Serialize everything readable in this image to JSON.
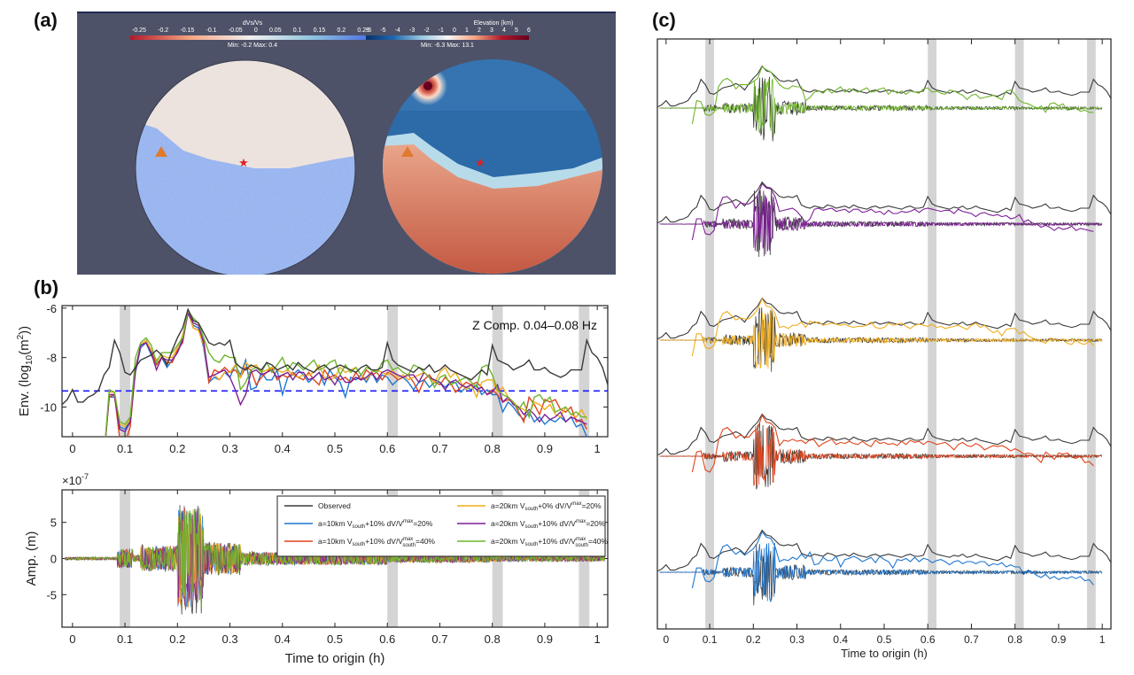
{
  "labels": {
    "a": "(a)",
    "b": "(b)",
    "c": "(c)"
  },
  "panel_a": {
    "left_map": {
      "colorbar_title": "dVs/Vs",
      "colorbar_ticks": [
        "-0.25",
        "-0.2",
        "-0.15",
        "-0.1",
        "-0.05",
        "0",
        "0.05",
        "0.1",
        "0.15",
        "0.2",
        "0.25"
      ],
      "minmax": "Min: -0.2   Max: 0.4",
      "colors": [
        "#b2182b",
        "#f4a582",
        "#f0f0f0",
        "#92c5de",
        "#4a6fe3"
      ]
    },
    "right_map": {
      "colorbar_title": "Elevation (km)",
      "colorbar_ticks": [
        "-6",
        "-5",
        "-4",
        "-3",
        "-2",
        "-1",
        "0",
        "1",
        "2",
        "3",
        "4",
        "5",
        "6"
      ],
      "minmax": "Min: -6.3  Max: 13.1",
      "colors": [
        "#08306b",
        "#2166ac",
        "#92c5de",
        "#f7f7f7",
        "#f4a582",
        "#b2182b",
        "#67001f"
      ]
    },
    "markers": {
      "station": "triangle",
      "event": "star"
    }
  },
  "chart_data": [
    {
      "type": "line",
      "panel": "b-top",
      "title": "",
      "annotation": "Z Comp.  0.04–0.08 Hz",
      "xlabel": "",
      "ylabel": "Env. (log10(m2))",
      "ylabel_parts": [
        "Env. (log",
        "10",
        "(m",
        "2",
        "))"
      ],
      "xlim": [
        -0.02,
        1.02
      ],
      "ylim": [
        -11.2,
        -5.9
      ],
      "xticks": [
        0,
        0.1,
        0.2,
        0.3,
        0.4,
        0.5,
        0.6,
        0.7,
        0.8,
        0.9,
        1
      ],
      "xtick_labels": [
        "0",
        "0.1",
        "0.2",
        "0.3",
        "0.4",
        "0.5",
        "0.6",
        "0.7",
        "0.8",
        "0.9",
        "1"
      ],
      "yticks": [
        -10,
        -8,
        -6
      ],
      "ytick_labels": [
        "-10",
        "-8",
        "-6"
      ],
      "threshold": -9.35,
      "shaded_windows": [
        [
          0.09,
          0.11
        ],
        [
          0.6,
          0.62
        ],
        [
          0.8,
          0.82
        ],
        [
          0.965,
          0.985
        ]
      ],
      "x": [
        -0.02,
        -0.01,
        0,
        0.01,
        0.02,
        0.03,
        0.04,
        0.05,
        0.06,
        0.07,
        0.08,
        0.09,
        0.1,
        0.11,
        0.12,
        0.13,
        0.14,
        0.15,
        0.16,
        0.17,
        0.18,
        0.19,
        0.2,
        0.21,
        0.22,
        0.23,
        0.24,
        0.25,
        0.26,
        0.27,
        0.28,
        0.29,
        0.3,
        0.31,
        0.32,
        0.33,
        0.34,
        0.35,
        0.36,
        0.37,
        0.38,
        0.39,
        0.4,
        0.41,
        0.42,
        0.43,
        0.44,
        0.45,
        0.46,
        0.47,
        0.48,
        0.49,
        0.5,
        0.51,
        0.52,
        0.53,
        0.54,
        0.55,
        0.56,
        0.57,
        0.58,
        0.59,
        0.6,
        0.61,
        0.62,
        0.63,
        0.64,
        0.65,
        0.66,
        0.67,
        0.68,
        0.69,
        0.7,
        0.71,
        0.72,
        0.73,
        0.74,
        0.75,
        0.76,
        0.77,
        0.78,
        0.79,
        0.8,
        0.81,
        0.82,
        0.83,
        0.84,
        0.85,
        0.86,
        0.87,
        0.88,
        0.89,
        0.9,
        0.91,
        0.92,
        0.93,
        0.94,
        0.95,
        0.96,
        0.97,
        0.98,
        0.99,
        1,
        1.01,
        1.02
      ],
      "series": [
        {
          "name": "Observed",
          "color": "#3a3a3a",
          "values": [
            -9.9,
            -9.7,
            -9.3,
            -9.8,
            -9.8,
            -9.6,
            -9.5,
            -9.3,
            -8.7,
            -8.4,
            -7.3,
            -7.8,
            -8.6,
            -8.7,
            -8.4,
            -8.1,
            -8.0,
            -7.9,
            -7.7,
            -7.9,
            -8.3,
            -7.7,
            -7.2,
            -6.8,
            -6.05,
            -6.5,
            -6.6,
            -7.0,
            -7.4,
            -7.5,
            -7.4,
            -7.5,
            -7.3,
            -8.2,
            -8.4,
            -8.5,
            -8.3,
            -8.4,
            -8.5,
            -8.2,
            -8.3,
            -8.5,
            -8.4,
            -8.3,
            -8.5,
            -8.2,
            -8.4,
            -8.5,
            -8.6,
            -8.4,
            -8.3,
            -8.5,
            -8.4,
            -8.3,
            -8.4,
            -8.5,
            -8.6,
            -8.4,
            -8.3,
            -8.5,
            -8.5,
            -8.4,
            -7.4,
            -8.1,
            -8.3,
            -8.4,
            -8.5,
            -8.6,
            -8.4,
            -8.5,
            -8.3,
            -8.6,
            -8.5,
            -8.3,
            -8.5,
            -8.6,
            -8.7,
            -8.8,
            -8.9,
            -8.7,
            -8.5,
            -8.7,
            -7.5,
            -8.1,
            -8.2,
            -8.3,
            -8.5,
            -8.4,
            -8.3,
            -8.1,
            -8.5,
            -8.5,
            -8.4,
            -8.6,
            -8.7,
            -8.8,
            -8.7,
            -8.5,
            -8.5,
            -8.5,
            -7.3,
            -7.8,
            -8.0,
            -8.4,
            -9.1
          ]
        },
        {
          "name": "a=10km Vsouth+10% dV/Vmax=20%",
          "color": "#1f77d0",
          "values": [
            null,
            null,
            null,
            null,
            null,
            null,
            null,
            null,
            -12,
            -9.6,
            -9.6,
            -10.8,
            -10.9,
            -10.5,
            -8.6,
            -7.6,
            -7.4,
            -7.9,
            -8.3,
            -8.0,
            -8.4,
            -8.1,
            -7.8,
            -7.2,
            -6.2,
            -6.7,
            -6.8,
            -7.6,
            -9.0,
            -8.8,
            -8.9,
            -8.6,
            -8.8,
            -8.3,
            -8.7,
            -8.1,
            -9.3,
            -9.2,
            -8.6,
            -8.9,
            -8.9,
            -8.5,
            -9.5,
            -8.8,
            -8.7,
            -8.5,
            -8.7,
            -9.0,
            -8.8,
            -8.6,
            -9.1,
            -8.5,
            -8.8,
            -9.0,
            -9.6,
            -8.8,
            -8.9,
            -8.7,
            -9.0,
            -8.6,
            -9.0,
            -8.7,
            -8.8,
            -9.1,
            -8.9,
            -8.8,
            -9.0,
            -9.3,
            -9.0,
            -8.9,
            -9.2,
            -9.0,
            -9.0,
            -9.2,
            -9.0,
            -9.0,
            -9.4,
            -9.2,
            -9.3,
            -9.1,
            -9.5,
            -9.3,
            -9.5,
            -9.5,
            -10.2,
            -9.8,
            -10.0,
            -10.3,
            -10.5,
            -10.2,
            -10.6,
            -10.4,
            -10.7,
            -10.5,
            -10.6,
            -10.4,
            -10.6,
            -10.4,
            -10.8,
            -10.7,
            -11.2,
            null,
            null,
            null,
            null
          ]
        },
        {
          "name": "a=10km Vsouth+10% dV/Vsouthmax=40%",
          "color": "#e0441c",
          "values": [
            null,
            null,
            null,
            null,
            null,
            null,
            null,
            null,
            -12,
            -9.6,
            -9.5,
            -11.3,
            -11.5,
            -10.8,
            -8.5,
            -7.5,
            -7.3,
            -7.7,
            -8.3,
            -8.0,
            -8.2,
            -8.2,
            -7.7,
            -7.4,
            -6.15,
            -6.8,
            -6.9,
            -7.3,
            -9.0,
            -8.5,
            -8.6,
            -8.4,
            -8.6,
            -8.5,
            -8.8,
            -8.4,
            -8.5,
            -9.1,
            -8.8,
            -8.6,
            -8.4,
            -8.9,
            -8.7,
            -8.8,
            -8.6,
            -8.8,
            -8.9,
            -8.6,
            -8.9,
            -9.1,
            -8.5,
            -8.8,
            -8.7,
            -8.9,
            -8.8,
            -9.0,
            -8.6,
            -8.9,
            -8.5,
            -8.7,
            -8.6,
            -8.9,
            -8.6,
            -8.7,
            -8.9,
            -8.8,
            -8.7,
            -9.0,
            -9.4,
            -8.9,
            -8.7,
            -9.0,
            -9.1,
            -8.8,
            -9.0,
            -9.4,
            -9.2,
            -9.0,
            -9.1,
            -9.0,
            -9.2,
            -9.5,
            -9.3,
            -9.5,
            -9.8,
            -9.7,
            -9.8,
            -10.2,
            -10.6,
            -9.6,
            -9.9,
            -10.3,
            -9.7,
            -9.8,
            -9.7,
            -10.1,
            -10.2,
            -10.0,
            -10.6,
            -10.5,
            -10.9,
            null,
            null,
            null,
            null
          ]
        },
        {
          "name": "a=20km Vsouth+0%  dV/Vmax=20%",
          "color": "#f0ad1c",
          "values": [
            null,
            null,
            null,
            null,
            null,
            null,
            null,
            null,
            -12,
            -9.4,
            -9.4,
            -10.7,
            -10.8,
            -10.5,
            -8.4,
            -7.5,
            -7.3,
            -7.7,
            -8.1,
            -7.9,
            -8.0,
            -8.0,
            -7.6,
            -7.1,
            -6.1,
            -6.8,
            -6.9,
            -7.5,
            -8.8,
            -8.7,
            -8.9,
            -8.6,
            -8.6,
            -8.3,
            -8.8,
            -8.2,
            -8.4,
            -8.3,
            -8.6,
            -8.5,
            -8.4,
            -8.5,
            -8.6,
            -8.5,
            -8.7,
            -8.8,
            -8.7,
            -8.7,
            -8.6,
            -8.3,
            -8.8,
            -8.9,
            -8.8,
            -8.4,
            -8.6,
            -8.5,
            -8.4,
            -8.7,
            -8.9,
            -8.6,
            -8.5,
            -8.6,
            -8.7,
            -8.5,
            -8.8,
            -8.7,
            -8.9,
            -8.8,
            -8.7,
            -8.6,
            -8.8,
            -9.0,
            -8.6,
            -8.4,
            -8.8,
            -8.6,
            -9.0,
            -9.3,
            -9.1,
            -9.6,
            -9.0,
            -8.9,
            -8.9,
            -9.4,
            -9.2,
            -9.6,
            -9.8,
            -10.0,
            -10.1,
            -10.3,
            -9.8,
            -9.9,
            -10.1,
            -9.9,
            -10.3,
            -10.4,
            -10.0,
            -10.3,
            -10.4,
            -10.1,
            -10.5,
            null,
            null,
            null,
            null
          ]
        },
        {
          "name": "a=20km Vsouth+10% dV/Vmax=20%",
          "color": "#7d1f96",
          "values": [
            null,
            null,
            null,
            null,
            null,
            null,
            null,
            null,
            -12,
            -9.5,
            -9.5,
            -10.9,
            -11.0,
            -10.6,
            -8.5,
            -7.5,
            -7.4,
            -7.8,
            -8.5,
            -8.0,
            -8.1,
            -8.1,
            -7.8,
            -7.3,
            -6.2,
            -6.6,
            -6.7,
            -7.4,
            -8.8,
            -8.7,
            -8.6,
            -8.5,
            -8.8,
            -9.3,
            -9.9,
            -9.5,
            -8.6,
            -8.5,
            -8.7,
            -8.6,
            -8.5,
            -8.8,
            -8.7,
            -8.6,
            -8.9,
            -8.6,
            -8.6,
            -8.9,
            -8.8,
            -8.6,
            -8.9,
            -8.8,
            -9.1,
            -8.7,
            -9.0,
            -9.0,
            -8.8,
            -8.9,
            -8.8,
            -8.6,
            -8.9,
            -8.6,
            -8.5,
            -8.6,
            -8.7,
            -8.8,
            -8.7,
            -8.7,
            -9.0,
            -8.6,
            -8.8,
            -8.9,
            -9.0,
            -9.3,
            -9.0,
            -8.9,
            -9.1,
            -9.2,
            -9.1,
            -9.3,
            -9.2,
            -9.5,
            -9.4,
            -9.1,
            -9.8,
            -9.6,
            -9.9,
            -10.0,
            -10.3,
            -10.1,
            -10.3,
            -10.6,
            -10.3,
            -10.5,
            -10.4,
            -10.2,
            -10.6,
            -10.4,
            -10.5,
            -10.6,
            -10.7,
            null,
            null,
            null,
            null
          ]
        },
        {
          "name": "a=20km Vsouth+10% dV/Vsouthmax=40%",
          "color": "#6fb52c",
          "values": [
            null,
            null,
            null,
            null,
            null,
            null,
            null,
            null,
            -12,
            -9.3,
            -9.4,
            -10.6,
            -10.7,
            -10.4,
            -8.0,
            -7.4,
            -7.2,
            -7.5,
            -8.2,
            -7.8,
            -7.8,
            -7.8,
            -7.5,
            -7.2,
            -6.1,
            -6.4,
            -6.6,
            -7.2,
            -7.8,
            -8.1,
            -8.2,
            -7.9,
            -8.0,
            -8.0,
            -9.3,
            -9.0,
            -8.5,
            -8.4,
            -8.6,
            -8.2,
            -8.6,
            -8.3,
            -8.0,
            -8.5,
            -8.2,
            -8.3,
            -8.5,
            -8.3,
            -8.1,
            -8.5,
            -8.4,
            -8.2,
            -8.1,
            -8.7,
            -8.3,
            -8.6,
            -8.4,
            -8.7,
            -8.4,
            -8.5,
            -8.6,
            -8.2,
            -8.1,
            -8.5,
            -8.4,
            -8.6,
            -8.7,
            -8.3,
            -8.4,
            -8.6,
            -8.8,
            -9.2,
            -8.8,
            -8.7,
            -9.1,
            -9.0,
            -8.9,
            -8.8,
            -9.0,
            -9.2,
            -8.4,
            -8.3,
            -8.7,
            -9.3,
            -9.5,
            -9.6,
            -9.8,
            -10.1,
            -9.8,
            -10.4,
            -9.6,
            -9.5,
            -9.8,
            -9.6,
            -10.2,
            -10.1,
            -10.0,
            -10.3,
            -10.2,
            -10.4,
            -10.4,
            null,
            null,
            null,
            null
          ]
        }
      ]
    },
    {
      "type": "line",
      "panel": "b-bottom",
      "xlabel": "Time to origin (h)",
      "ylabel": "Amp. (m)",
      "exponent_label": "×10",
      "exponent_power": "-7",
      "xlim": [
        -0.02,
        1.02
      ],
      "ylim": [
        -9.5,
        9.5
      ],
      "xticks": [
        0,
        0.1,
        0.2,
        0.3,
        0.4,
        0.5,
        0.6,
        0.7,
        0.8,
        0.9,
        1
      ],
      "xtick_labels": [
        "0",
        "0.1",
        "0.2",
        "0.3",
        "0.4",
        "0.5",
        "0.6",
        "0.7",
        "0.8",
        "0.9",
        "1"
      ],
      "yticks": [
        -5,
        0,
        5
      ],
      "ytick_labels": [
        "-5",
        "0",
        "5"
      ],
      "shaded_windows": [
        [
          0.09,
          0.11
        ],
        [
          0.6,
          0.62
        ],
        [
          0.8,
          0.82
        ],
        [
          0.965,
          0.985
        ]
      ],
      "peak_amplitude": 7.0,
      "legend": {
        "placement": "top-right",
        "entries": [
          {
            "color": "#3a3a3a",
            "text": "Observed"
          },
          {
            "color": "#1f77d0",
            "text": "a=10km V",
            "sub": "south",
            "text2": "+10% dV/V",
            "sup": "max",
            "text3": "=20%"
          },
          {
            "color": "#e0441c",
            "text": "a=10km V",
            "sub": "south",
            "text2": "+10% dV/V",
            "sup": "max",
            "sub2": "south",
            "text3": "=40%"
          },
          {
            "color": "#f0ad1c",
            "text": "a=20km V",
            "sub": "south",
            "text2": "+0%  dV/V",
            "sup": "max",
            "text3": "=20%"
          },
          {
            "color": "#7d1f96",
            "text": "a=20km V",
            "sub": "south",
            "text2": "+10% dV/V",
            "sup": "max",
            "text3": "=20%"
          },
          {
            "color": "#6fb52c",
            "text": "a=20km V",
            "sub": "south",
            "text2": "+10% dV/V",
            "sup": "max",
            "sub2": "south",
            "text3": "=40%"
          }
        ]
      }
    },
    {
      "type": "line",
      "panel": "c",
      "xlabel": "Time to origin (h)",
      "xlim": [
        -0.02,
        1.02
      ],
      "xticks": [
        0,
        0.1,
        0.2,
        0.3,
        0.4,
        0.5,
        0.6,
        0.7,
        0.8,
        0.9,
        1
      ],
      "xtick_labels": [
        "0",
        "0.1",
        "0.2",
        "0.3",
        "0.4",
        "0.5",
        "0.6",
        "0.7",
        "0.8",
        "0.9",
        "1"
      ],
      "shaded_windows": [
        [
          0.09,
          0.11
        ],
        [
          0.6,
          0.62
        ],
        [
          0.8,
          0.82
        ],
        [
          0.965,
          0.985
        ]
      ],
      "stack_order": [
        "#6fb52c",
        "#7d1f96",
        "#f0ad1c",
        "#e0441c",
        "#1f77d0"
      ]
    }
  ]
}
